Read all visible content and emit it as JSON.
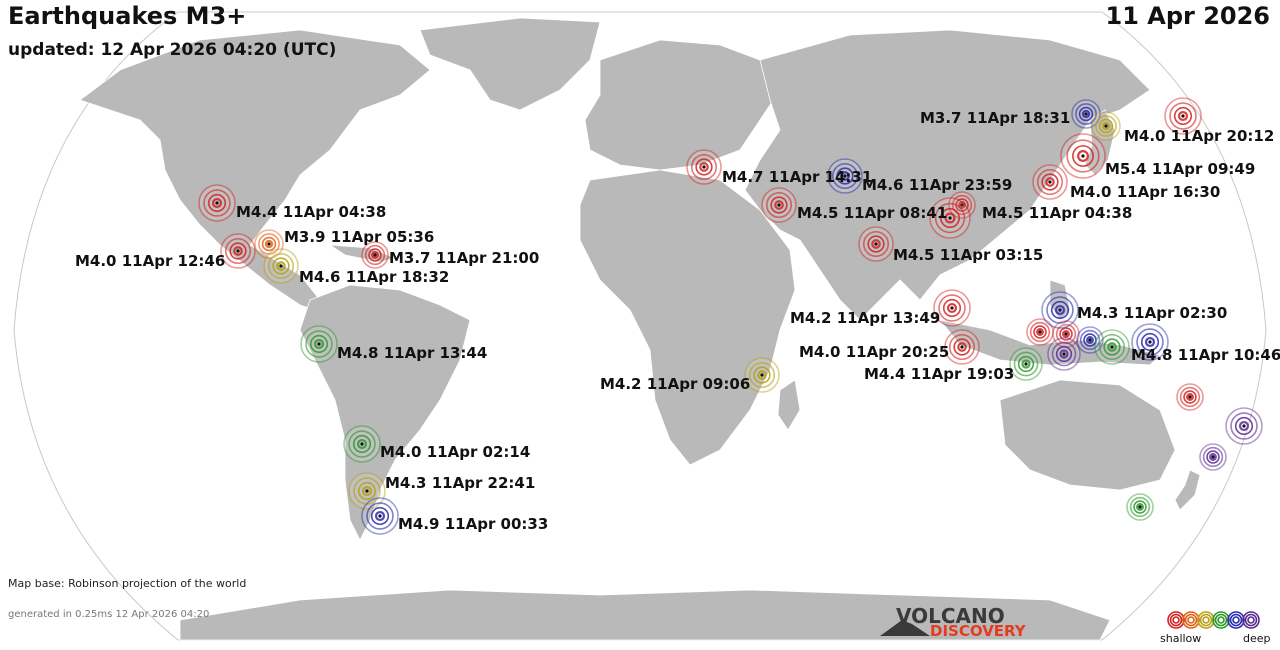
{
  "header": {
    "title": "Earthquakes M3+",
    "updated": "updated: 12 Apr 2026 04:20 (UTC)",
    "date": "11 Apr 2026"
  },
  "footer": {
    "map_base": "Map base: Robinson projection of the world",
    "generated": "generated in 0.25ms 12 Apr 2026 04:20"
  },
  "logo": {
    "top": "VOLCANO",
    "bottom": "DISCOVERY"
  },
  "legend": {
    "shallow": "shallow",
    "deep": "deep",
    "colors": [
      "#d42020",
      "#e06010",
      "#b8a010",
      "#2a9a2a",
      "#2a2ab0",
      "#5a2a90"
    ]
  },
  "colors": {
    "ocean": "#ffffff",
    "land": "#b9b9b9",
    "border": "#ffffff"
  },
  "quakes": [
    {
      "id": "q-iran-14-31",
      "label": "M4.6 11Apr 23:59",
      "depth_class": 4
    },
    {
      "id": "q-japan-1",
      "label": "M3.7 11Apr 18:31",
      "depth_class": 4
    },
    {
      "id": "q-japan-2",
      "label": "M4.0 11Apr 20:12",
      "depth_class": 2
    },
    {
      "id": "q-japan-3",
      "label": "M5.4 11Apr 09:49",
      "depth_class": 0
    },
    {
      "id": "q-china-taiwan",
      "label": "M4.0 11Apr 16:30",
      "depth_class": 0
    },
    {
      "id": "q-turkey",
      "label": "M4.7 11Apr 14:31",
      "depth_class": 0
    },
    {
      "id": "q-iran",
      "label": "M4.5 11Apr 08:41",
      "depth_class": 0
    },
    {
      "id": "q-myanmar",
      "label": "M4.5 11Apr 04:38",
      "depth_class": 0
    },
    {
      "id": "q-india",
      "label": "M4.5 11Apr 03:15",
      "depth_class": 0
    },
    {
      "id": "q-andaman",
      "label": "M4.2 11Apr 13:49",
      "depth_class": 0
    },
    {
      "id": "q-sumatra",
      "label": "M4.0 11Apr 20:25",
      "depth_class": 0
    },
    {
      "id": "q-java",
      "label": "M4.4 11Apr 19:03",
      "depth_class": 3
    },
    {
      "id": "q-philippines",
      "label": "M4.3 11Apr 02:30",
      "depth_class": 4
    },
    {
      "id": "q-png",
      "label": "M4.8 11Apr 10:46",
      "depth_class": 4
    },
    {
      "id": "q-east-africa",
      "label": "M4.2 11Apr 09:06",
      "depth_class": 2
    },
    {
      "id": "q-us-south",
      "label": "M4.4 11Apr 04:38",
      "depth_class": 0
    },
    {
      "id": "q-mexico-1",
      "label": "M3.9 11Apr 05:36",
      "depth_class": 1
    },
    {
      "id": "q-mexico-2",
      "label": "M4.0 11Apr 12:46",
      "depth_class": 0
    },
    {
      "id": "q-caribbean",
      "label": "M3.7 11Apr 21:00",
      "depth_class": 0
    },
    {
      "id": "q-central-america",
      "label": "M4.6 11Apr 18:32",
      "depth_class": 2
    },
    {
      "id": "q-peru",
      "label": "M4.8 11Apr 13:44",
      "depth_class": 3
    },
    {
      "id": "q-chile-1",
      "label": "M4.0 11Apr 02:14",
      "depth_class": 3
    },
    {
      "id": "q-chile-2",
      "label": "M4.3 11Apr 22:41",
      "depth_class": 2
    },
    {
      "id": "q-chile-3",
      "label": "M4.9 11Apr 00:33",
      "depth_class": 4
    }
  ]
}
